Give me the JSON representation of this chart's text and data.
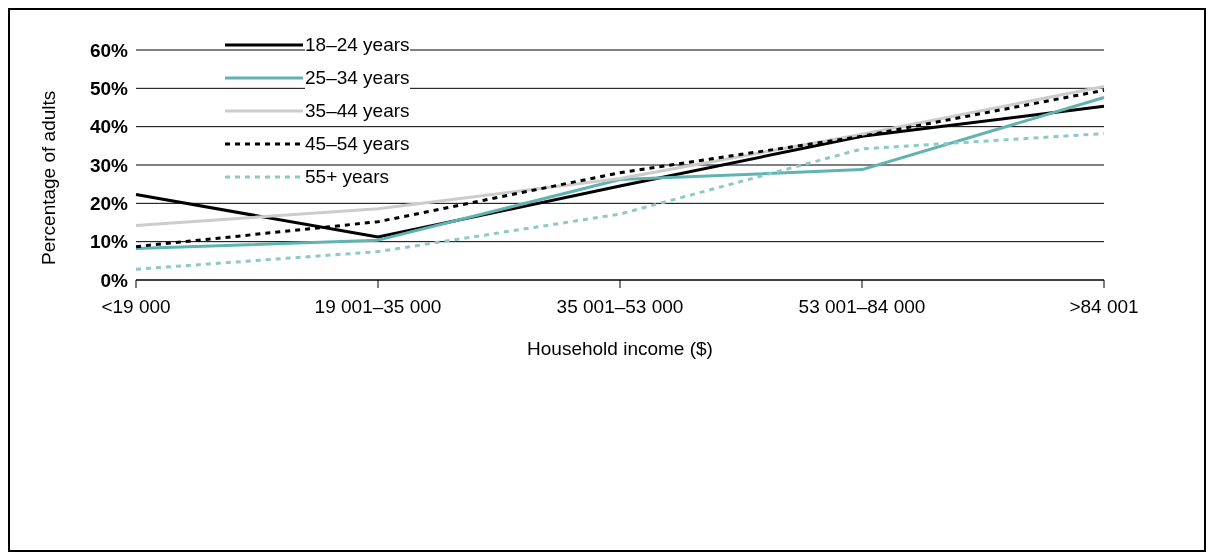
{
  "chart_data": {
    "type": "line",
    "xlabel": "Household income ($)",
    "ylabel": "Percentage of adults",
    "categories": [
      "<19 000",
      "19 001–35 000",
      "35 001–53 000",
      "53 001–84 000",
      ">84 001"
    ],
    "series": [
      {
        "name": "18–24 years",
        "color": "#000000",
        "line_style": "solid",
        "values": [
          22.3,
          11.2,
          24.5,
          37.5,
          45.3
        ]
      },
      {
        "name": "25–34 years",
        "color": "#5fb3b0",
        "line_style": "solid",
        "values": [
          8.2,
          10.4,
          26.2,
          28.8,
          47.6
        ]
      },
      {
        "name": "35–44 years",
        "color": "#cccccc",
        "line_style": "solid",
        "values": [
          14.2,
          18.6,
          26.5,
          38,
          50.5
        ]
      },
      {
        "name": "45–54 years",
        "color": "#000000",
        "line_style": "dotted",
        "values": [
          8.7,
          15.2,
          28,
          37.5,
          49.5
        ]
      },
      {
        "name": "55+ years",
        "color": "#8ccac8",
        "line_style": "dotted",
        "values": [
          2.8,
          7.4,
          17.2,
          34.2,
          38.2
        ]
      }
    ],
    "ylim": [
      0,
      60
    ],
    "yticks": [
      {
        "value": 0,
        "label": "0%"
      },
      {
        "value": 10,
        "label": "10%"
      },
      {
        "value": 20,
        "label": "20%"
      },
      {
        "value": 30,
        "label": "30%"
      },
      {
        "value": 40,
        "label": "40%"
      },
      {
        "value": 50,
        "label": "50%"
      },
      {
        "value": 60,
        "label": "60%"
      }
    ],
    "grid": "y",
    "legend": "top left",
    "marker": "none"
  }
}
